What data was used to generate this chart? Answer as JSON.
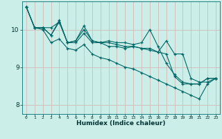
{
  "xlabel": "Humidex (Indice chaleur)",
  "bg_color": "#cceee8",
  "grid_color": "#d4b8b8",
  "line_color": "#006666",
  "xlim": [
    -0.5,
    23.5
  ],
  "ylim": [
    7.75,
    10.75
  ],
  "yticks": [
    8,
    9,
    10
  ],
  "xticks": [
    0,
    1,
    2,
    3,
    4,
    5,
    6,
    7,
    8,
    9,
    10,
    11,
    12,
    13,
    14,
    15,
    16,
    17,
    18,
    19,
    20,
    21,
    22,
    23
  ],
  "series": [
    [
      10.6,
      10.05,
      10.05,
      9.85,
      10.2,
      9.65,
      9.7,
      10.1,
      9.7,
      9.65,
      9.55,
      9.55,
      9.5,
      9.55,
      9.5,
      9.45,
      9.4,
      9.7,
      9.35,
      9.35,
      8.7,
      8.6,
      8.6,
      8.7
    ],
    [
      10.6,
      10.05,
      10.05,
      9.85,
      10.25,
      9.65,
      9.65,
      9.9,
      9.65,
      9.65,
      9.7,
      9.65,
      9.65,
      9.6,
      9.65,
      10.0,
      9.55,
      9.1,
      8.8,
      8.6,
      8.55,
      8.55,
      8.7,
      8.7
    ],
    [
      10.6,
      10.05,
      10.05,
      10.05,
      10.2,
      9.65,
      9.7,
      10.0,
      9.7,
      9.65,
      9.65,
      9.6,
      9.55,
      9.55,
      9.5,
      9.5,
      9.4,
      9.35,
      8.75,
      8.55,
      8.55,
      8.55,
      8.7,
      8.7
    ],
    [
      10.6,
      10.05,
      10.0,
      9.65,
      9.75,
      9.5,
      9.45,
      9.6,
      9.35,
      9.25,
      9.2,
      9.1,
      9.0,
      8.95,
      8.85,
      8.75,
      8.65,
      8.55,
      8.45,
      8.35,
      8.25,
      8.15,
      8.55,
      8.7
    ]
  ]
}
